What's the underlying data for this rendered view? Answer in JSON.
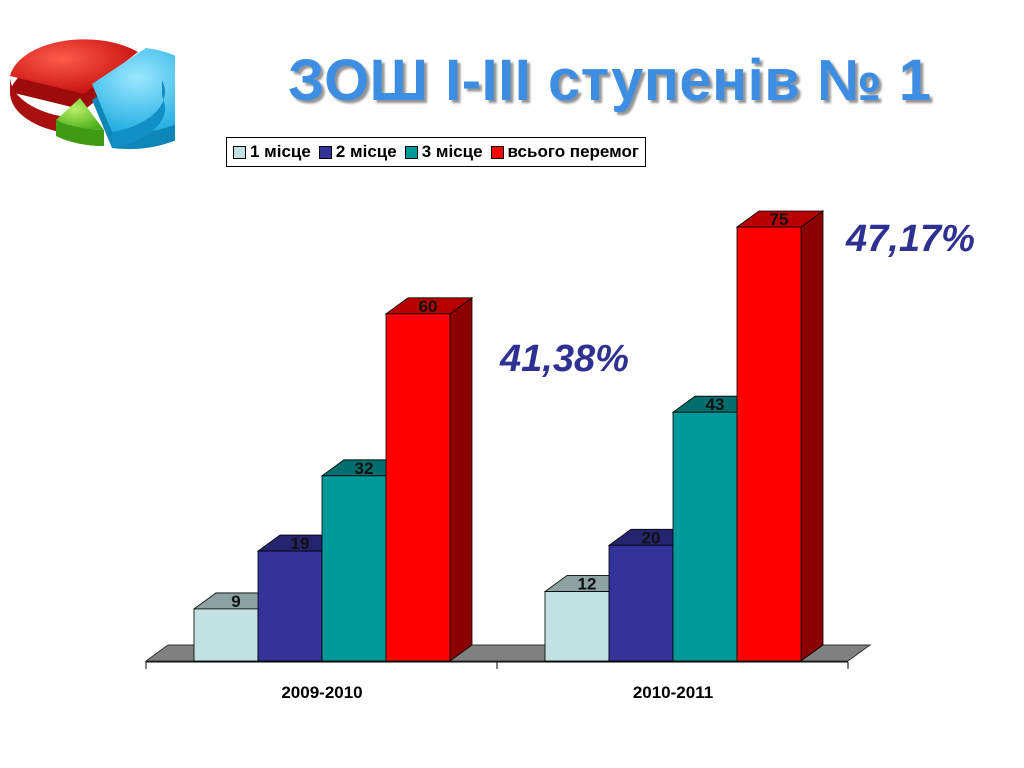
{
  "title": "ЗОШ І-ІІІ ступенів № 1",
  "logo_icon": "pie-chart-icon",
  "chart_data": {
    "type": "bar",
    "categories": [
      "2009-2010",
      "2010-2011"
    ],
    "series": [
      {
        "name": "1 місце",
        "values": [
          9,
          12
        ],
        "color": "#c2e1e3"
      },
      {
        "name": "2 місце",
        "values": [
          19,
          20
        ],
        "color": "#33339a"
      },
      {
        "name": "3 місце",
        "values": [
          32,
          43
        ],
        "color": "#009999"
      },
      {
        "name": "всього перемог",
        "values": [
          60,
          75
        ],
        "color": "#ff0000"
      }
    ],
    "ylim": [
      0,
      80
    ],
    "grid": false,
    "legend": "top",
    "annotations": [
      "41,38%",
      "47,17%"
    ]
  }
}
